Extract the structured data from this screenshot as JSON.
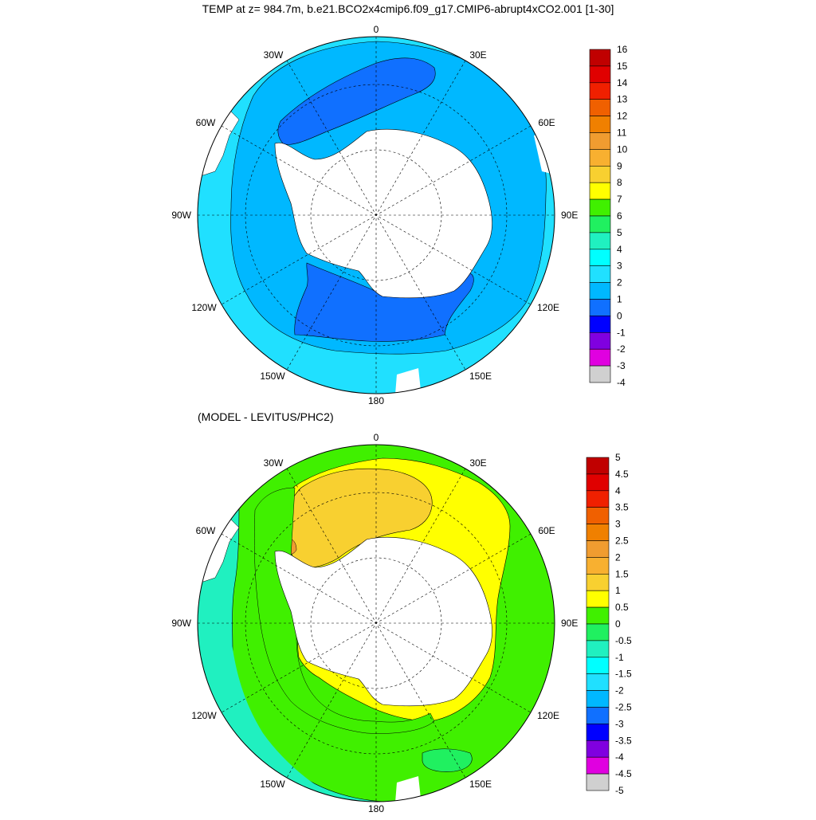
{
  "title": "TEMP at z= 984.7m, b.e21.BCO2x4cmip6.f09_g17.CMIP6-abrupt4xCO2.001 [1-30]",
  "subtitle": "(MODEL - LEVITUS/PHC2)",
  "lon_labels": {
    "n": "0",
    "ne": "30E",
    "e1": "60E",
    "e": "90E",
    "se1": "120E",
    "se": "150E",
    "s": "180",
    "sw": "150W",
    "sw1": "120W",
    "w": "90W",
    "w1": "60W",
    "nw": "30W"
  },
  "top_colorbar": {
    "labels": [
      "16",
      "15",
      "14",
      "13",
      "12",
      "11",
      "10",
      "9",
      "8",
      "7",
      "6",
      "5",
      "4",
      "3",
      "2",
      "1",
      "0",
      "-1",
      "-2",
      "-3",
      "-4"
    ],
    "colors": [
      "#c00000",
      "#e00000",
      "#f02000",
      "#f06000",
      "#f08000",
      "#f09c30",
      "#f8b030",
      "#f8d030",
      "#ffff00",
      "#40f000",
      "#20f060",
      "#20f0c0",
      "#00ffff",
      "#20e0ff",
      "#00b8ff",
      "#1070ff",
      "#0000ff",
      "#8000e0",
      "#e000e0",
      "#d0d0d0",
      "#707070"
    ]
  },
  "bottom_colorbar": {
    "labels": [
      "5",
      "4.5",
      "4",
      "3.5",
      "3",
      "2.5",
      "2",
      "1.5",
      "1",
      "0.5",
      "0",
      "-0.5",
      "-1",
      "-1.5",
      "-2",
      "-2.5",
      "-3",
      "-3.5",
      "-4",
      "-4.5",
      "-5"
    ],
    "colors": [
      "#c00000",
      "#e00000",
      "#f02000",
      "#f06000",
      "#f08000",
      "#f09c30",
      "#f8b030",
      "#f8d030",
      "#ffff00",
      "#40f000",
      "#20f060",
      "#20f0c0",
      "#00ffff",
      "#20e0ff",
      "#00b8ff",
      "#1070ff",
      "#0000ff",
      "#8000e0",
      "#e000e0",
      "#d0d0d0",
      "#707070"
    ]
  },
  "fill_colors": {
    "top_base": "#00b8ff",
    "top_outer": "#20e0ff",
    "top_dark": "#1070ff",
    "bot_base": "#40f000",
    "bot_outer": "#20f0c0",
    "bot_mid": "#20f060",
    "bot_yellow": "#ffff00",
    "bot_orange": "#f8d030",
    "bot_dark_orange": "#f09c30",
    "bot_cyan": "#00ffff"
  }
}
